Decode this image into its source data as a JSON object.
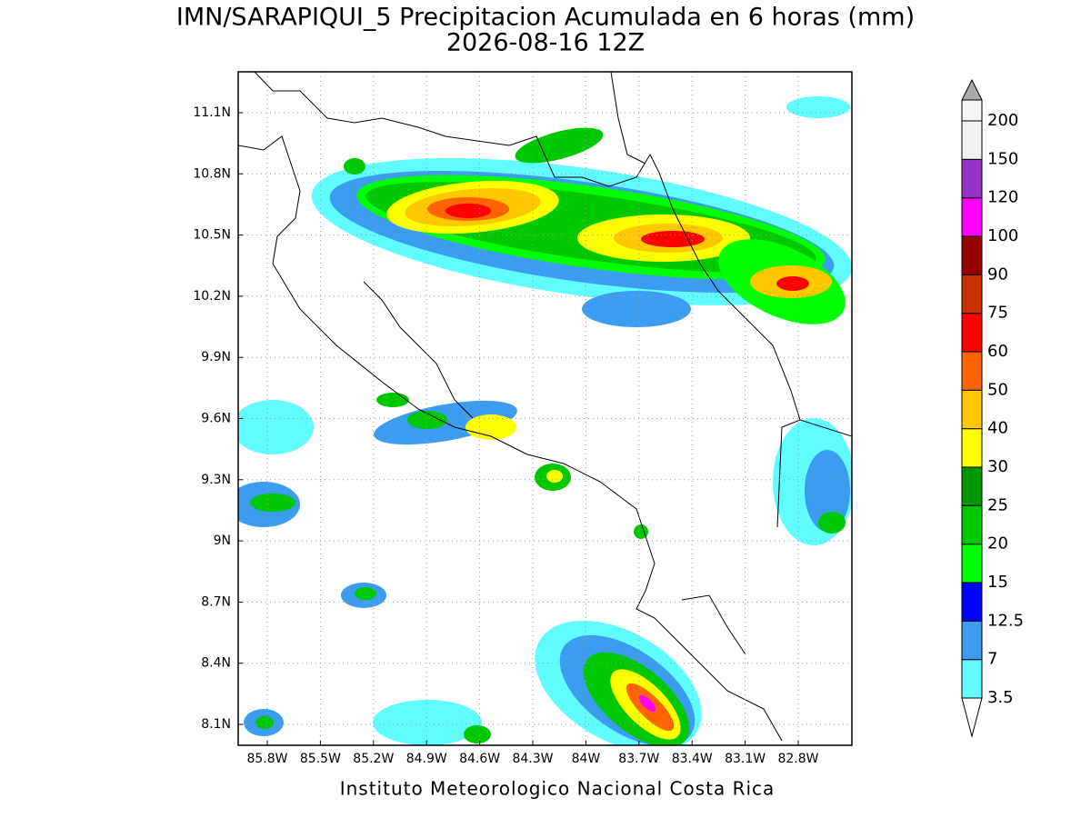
{
  "header": {
    "title": "IMN/SARAPIQUI_5 Precipitacion Acumulada en 6 horas (mm)",
    "subtitle": "2026-08-16 12Z"
  },
  "map": {
    "lon_ticks": [
      "85.8W",
      "85.5W",
      "85.2W",
      "84.9W",
      "84.6W",
      "84.3W",
      "84W",
      "83.7W",
      "83.4W",
      "83.1W",
      "82.8W"
    ],
    "lat_ticks": [
      "11.1N",
      "10.8N",
      "10.5N",
      "10.2N",
      "9.9N",
      "9.6N",
      "9.3N",
      "9N",
      "8.7N",
      "8.4N",
      "8.1N"
    ]
  },
  "colorbar": {
    "labels": [
      "3.5",
      "7",
      "12.5",
      "15",
      "20",
      "25",
      "30",
      "40",
      "50",
      "60",
      "75",
      "90",
      "100",
      "120",
      "150",
      "200"
    ],
    "colors": [
      "#60fcff",
      "#3c9cf0",
      "#0000ff",
      "#00ff00",
      "#00c800",
      "#009600",
      "#ffff00",
      "#ffc800",
      "#ff6400",
      "#ff0000",
      "#c83200",
      "#960000",
      "#ff00ff",
      "#9632c8",
      "#f0f0f0",
      "#f5f5f5"
    ]
  },
  "footer": "Instituto Meteorologico Nacional Costa Rica"
}
